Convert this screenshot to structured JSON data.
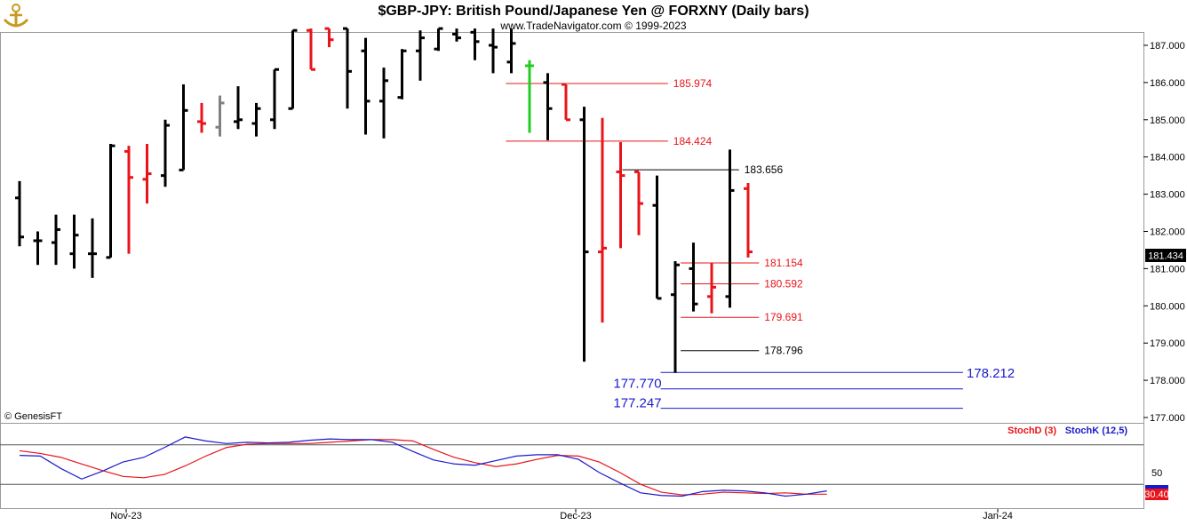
{
  "chart_data": {
    "type": "ohlc",
    "title": "$GBP-JPY:  British Pound/Japanese Yen @ FORXNY  (Daily bars)",
    "subtitle": "www.TradeNavigator.com © 1999-2023",
    "copyright": "© GenesisFT",
    "colors": {
      "up": "#000000",
      "down": "#e8141a",
      "neutral": "#808080",
      "green": "#22cc22",
      "stochD": "#e8141a",
      "stochK": "#1a1acc",
      "blueLevel": "#1a1acc",
      "redLevel": "#e8141a",
      "blackLevel": "#000000"
    },
    "price_axis": {
      "ylim": [
        176.8,
        187.45
      ],
      "ticks": [
        "187.000",
        "186.000",
        "185.000",
        "184.000",
        "183.000",
        "182.000",
        "181.000",
        "180.000",
        "179.000",
        "178.000",
        "177.000"
      ]
    },
    "last_price": "181.434",
    "date_labels": [
      "Nov-23",
      "Dec-23",
      "Jan-24"
    ],
    "bars": [
      {
        "x": 0,
        "o": 182.9,
        "h": 183.35,
        "l": 181.6,
        "c": 181.85,
        "color": "up"
      },
      {
        "x": 1,
        "o": 181.75,
        "h": 182.0,
        "l": 181.1,
        "c": 181.75,
        "color": "up"
      },
      {
        "x": 2,
        "o": 181.7,
        "h": 182.45,
        "l": 181.1,
        "c": 182.05,
        "color": "up"
      },
      {
        "x": 3,
        "o": 181.4,
        "h": 182.45,
        "l": 181.0,
        "c": 181.9,
        "color": "up"
      },
      {
        "x": 4,
        "o": 181.4,
        "h": 182.35,
        "l": 180.75,
        "c": 181.4,
        "color": "up"
      },
      {
        "x": 5,
        "o": 181.3,
        "h": 184.35,
        "l": 181.3,
        "c": 184.3,
        "color": "up"
      },
      {
        "x": 6,
        "o": 184.15,
        "h": 184.3,
        "l": 181.4,
        "c": 183.45,
        "color": "down"
      },
      {
        "x": 7,
        "o": 183.4,
        "h": 184.35,
        "l": 182.75,
        "c": 183.55,
        "color": "down"
      },
      {
        "x": 8,
        "o": 183.5,
        "h": 185.0,
        "l": 183.2,
        "c": 184.85,
        "color": "up"
      },
      {
        "x": 9,
        "o": 183.65,
        "h": 185.95,
        "l": 183.65,
        "c": 185.25,
        "color": "up"
      },
      {
        "x": 10,
        "o": 184.95,
        "h": 185.45,
        "l": 184.65,
        "c": 184.9,
        "color": "down"
      },
      {
        "x": 11,
        "o": 184.8,
        "h": 185.65,
        "l": 184.55,
        "c": 185.45,
        "color": "neutral"
      },
      {
        "x": 12,
        "o": 184.95,
        "h": 185.9,
        "l": 184.75,
        "c": 185.0,
        "color": "up"
      },
      {
        "x": 13,
        "o": 184.9,
        "h": 185.45,
        "l": 184.55,
        "c": 185.3,
        "color": "up"
      },
      {
        "x": 14,
        "o": 185.0,
        "h": 186.35,
        "l": 184.75,
        "c": 186.35,
        "color": "up"
      },
      {
        "x": 15,
        "o": 185.3,
        "h": 187.4,
        "l": 185.3,
        "c": 187.4,
        "color": "up"
      },
      {
        "x": 16,
        "o": 187.4,
        "h": 187.45,
        "l": 186.35,
        "c": 186.35,
        "color": "down"
      },
      {
        "x": 17,
        "o": 187.45,
        "h": 187.45,
        "l": 186.95,
        "c": 187.15,
        "color": "down"
      },
      {
        "x": 18,
        "o": 187.45,
        "h": 187.45,
        "l": 185.3,
        "c": 186.3,
        "color": "up"
      },
      {
        "x": 19,
        "o": 186.85,
        "h": 187.2,
        "l": 184.6,
        "c": 185.5,
        "color": "up"
      },
      {
        "x": 20,
        "o": 185.5,
        "h": 186.4,
        "l": 184.5,
        "c": 186.05,
        "color": "up"
      },
      {
        "x": 21,
        "o": 185.6,
        "h": 186.9,
        "l": 185.55,
        "c": 186.85,
        "color": "up"
      },
      {
        "x": 22,
        "o": 186.85,
        "h": 187.4,
        "l": 186.05,
        "c": 187.2,
        "color": "up"
      },
      {
        "x": 23,
        "o": 186.9,
        "h": 187.45,
        "l": 186.85,
        "c": 187.45,
        "color": "up"
      },
      {
        "x": 24,
        "o": 187.3,
        "h": 187.45,
        "l": 187.1,
        "c": 187.2,
        "color": "up"
      },
      {
        "x": 25,
        "o": 187.35,
        "h": 187.45,
        "l": 186.6,
        "c": 187.1,
        "color": "up"
      },
      {
        "x": 26,
        "o": 187.0,
        "h": 187.45,
        "l": 186.25,
        "c": 186.95,
        "color": "up"
      },
      {
        "x": 27,
        "o": 186.55,
        "h": 187.45,
        "l": 186.25,
        "c": 187.05,
        "color": "up"
      },
      {
        "x": 28,
        "o": 186.45,
        "h": 186.6,
        "l": 184.65,
        "c": 186.45,
        "color": "green"
      },
      {
        "x": 29,
        "o": 186.0,
        "h": 186.25,
        "l": 184.45,
        "c": 185.3,
        "color": "up"
      },
      {
        "x": 30,
        "o": 185.95,
        "h": 185.95,
        "l": 185.0,
        "c": 185.0,
        "color": "down"
      },
      {
        "x": 31,
        "o": 185.0,
        "h": 185.35,
        "l": 178.5,
        "c": 181.45,
        "color": "up"
      },
      {
        "x": 32,
        "o": 181.45,
        "h": 185.05,
        "l": 179.55,
        "c": 181.55,
        "color": "down"
      },
      {
        "x": 33,
        "o": 183.6,
        "h": 184.4,
        "l": 181.55,
        "c": 183.5,
        "color": "down"
      },
      {
        "x": 34,
        "o": 183.6,
        "h": 183.6,
        "l": 181.9,
        "c": 182.75,
        "color": "down"
      },
      {
        "x": 35,
        "o": 182.7,
        "h": 183.5,
        "l": 180.2,
        "c": 180.2,
        "color": "up"
      },
      {
        "x": 36,
        "o": 180.3,
        "h": 181.2,
        "l": 178.2,
        "c": 181.1,
        "color": "up"
      },
      {
        "x": 37,
        "o": 181.0,
        "h": 181.7,
        "l": 179.85,
        "c": 180.05,
        "color": "up"
      },
      {
        "x": 38,
        "o": 180.25,
        "h": 181.15,
        "l": 179.8,
        "c": 180.5,
        "color": "down"
      },
      {
        "x": 39,
        "o": 180.25,
        "h": 184.2,
        "l": 179.95,
        "c": 183.1,
        "color": "up"
      },
      {
        "x": 40,
        "o": 183.15,
        "h": 183.3,
        "l": 181.3,
        "c": 181.45,
        "color": "down"
      }
    ],
    "levels": [
      {
        "label": "185.974",
        "value": 185.974,
        "color": "red",
        "from": 26.7,
        "to": 35.6
      },
      {
        "label": "184.424",
        "value": 184.424,
        "color": "red",
        "from": 26.7,
        "to": 35.6
      },
      {
        "label": "183.656",
        "value": 183.656,
        "color": "black",
        "from": 33.1,
        "to": 39.5
      },
      {
        "label": "181.154",
        "value": 181.154,
        "color": "red",
        "from": 36.3,
        "to": 40.6
      },
      {
        "label": "180.592",
        "value": 180.592,
        "color": "red",
        "from": 36.3,
        "to": 40.6
      },
      {
        "label": "179.691",
        "value": 179.691,
        "color": "red",
        "from": 36.3,
        "to": 40.6
      },
      {
        "label": "178.796",
        "value": 178.796,
        "color": "black",
        "from": 36.3,
        "to": 40.6
      },
      {
        "label": "178.212",
        "value": 178.212,
        "color": "blue",
        "from": 35.2,
        "to": 51.8
      },
      {
        "label": "177.770",
        "value": 177.77,
        "color": "blue",
        "from": 35.2,
        "to": 51.8
      },
      {
        "label": "177.247",
        "value": 177.247,
        "color": "blue",
        "from": 35.2,
        "to": 51.8
      }
    ],
    "indicator": {
      "series": [
        {
          "name": "StochD (3)",
          "color": "#e8141a",
          "values": [
            71,
            67,
            61,
            51,
            41,
            32,
            30,
            35,
            48,
            63,
            76,
            81,
            82,
            82,
            82,
            84,
            86,
            88,
            88,
            86,
            73,
            61,
            53,
            47,
            51,
            58,
            64,
            63,
            54,
            38,
            20,
            8,
            4,
            5,
            8,
            7,
            6,
            7,
            5,
            5
          ]
        },
        {
          "name": "StochK (12,5)",
          "color": "#1a1acc",
          "values": [
            64,
            63,
            44,
            28,
            40,
            54,
            61,
            76,
            92,
            86,
            82,
            84,
            83,
            84,
            87,
            89,
            88,
            88,
            84,
            70,
            57,
            51,
            49,
            56,
            63,
            65,
            65,
            58,
            38,
            22,
            7,
            3,
            2,
            9,
            11,
            10,
            7,
            2,
            5,
            10
          ]
        },
        {
          "name": "",
          "color": "#000000",
          "values": []
        }
      ],
      "ylim": [
        0,
        100
      ],
      "reference_lines": [
        20,
        80
      ],
      "ticks": [
        "50"
      ],
      "last_values": [
        "30.40"
      ]
    }
  }
}
